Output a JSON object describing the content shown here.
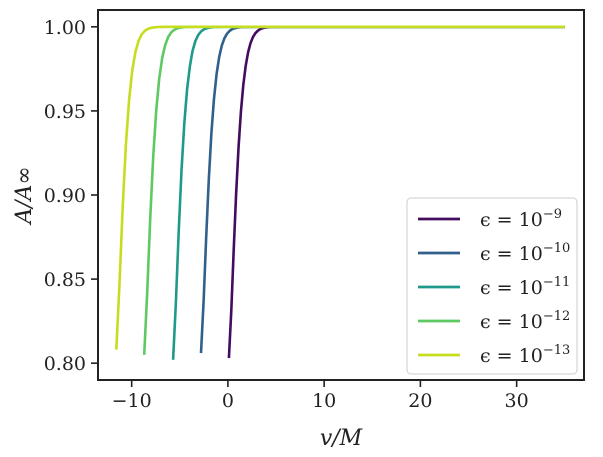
{
  "chart_data": {
    "type": "line",
    "xlabel": "v/M",
    "ylabel": "A/A∞",
    "xlim": [
      -13.5,
      37.0
    ],
    "ylim": [
      0.79,
      1.01
    ],
    "xticks": [
      -10,
      0,
      10,
      20,
      30
    ],
    "xtick_labels": [
      "−10",
      "0",
      "10",
      "20",
      "30"
    ],
    "yticks": [
      0.8,
      0.85,
      0.9,
      0.95,
      1.0
    ],
    "ytick_labels": [
      "0.80",
      "0.85",
      "0.90",
      "0.95",
      "1.00"
    ],
    "grid": false,
    "legend_position": "lower-right",
    "x_end": 35,
    "series": [
      {
        "name": "ϵ = 10",
        "exponent": "−9",
        "color": "#440c5e",
        "x_start": 0.1,
        "y_start": 0.803,
        "knee": 4.5
      },
      {
        "name": "ϵ = 10",
        "exponent": "−10",
        "color": "#30618d",
        "x_start": -2.8,
        "y_start": 0.806,
        "knee": 4.5
      },
      {
        "name": "ϵ = 10",
        "exponent": "−11",
        "color": "#1f9a8a",
        "x_start": -5.7,
        "y_start": 0.802,
        "knee": 4.5
      },
      {
        "name": "ϵ = 10",
        "exponent": "−12",
        "color": "#5ec962",
        "x_start": -8.7,
        "y_start": 0.805,
        "knee": 4.5
      },
      {
        "name": "ϵ = 10",
        "exponent": "−13",
        "color": "#c6dd1f",
        "x_start": -11.6,
        "y_start": 0.808,
        "knee": 4.5
      }
    ]
  }
}
